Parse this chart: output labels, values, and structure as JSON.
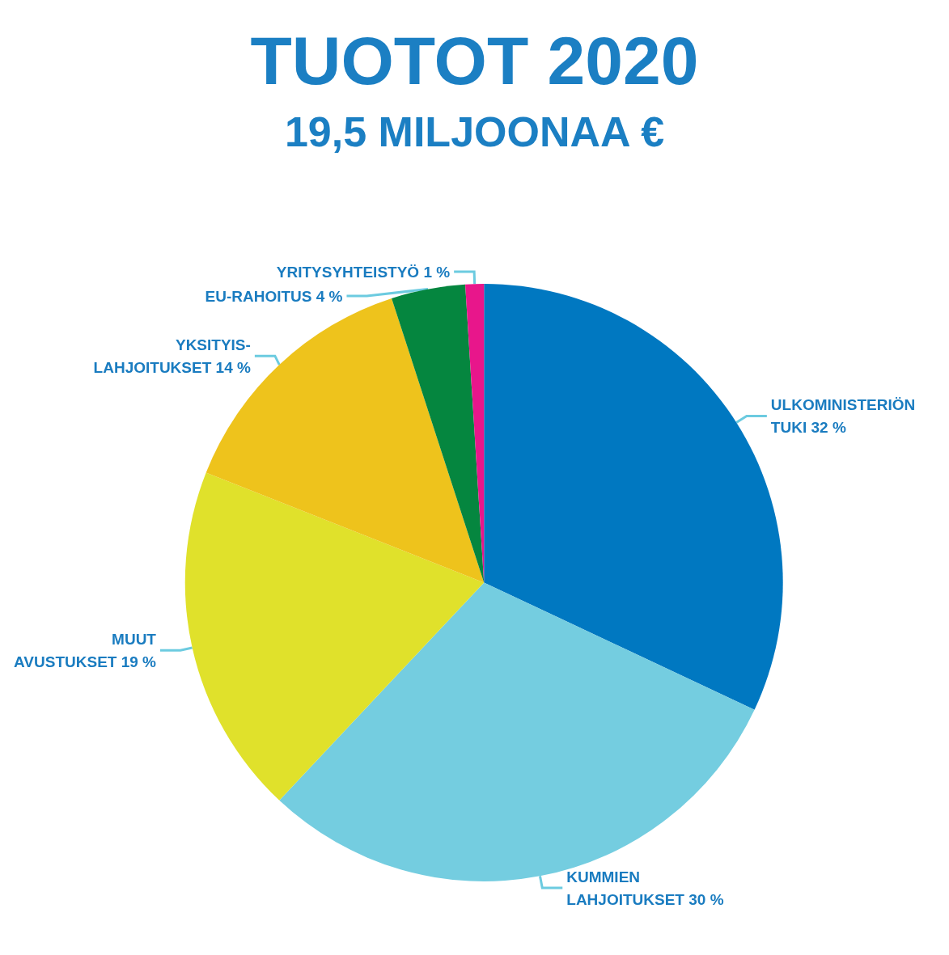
{
  "chart_data": {
    "type": "pie",
    "title": "TUOTOT 2020",
    "subtitle": "19,5 MILJOONAA €",
    "categories": [
      "ULKOMINISTERIÖN TUKI",
      "KUMMIEN LAHJOITUKSET",
      "MUUT AVUSTUKSET",
      "YKSITYIS-LAHJOITUKSET",
      "EU-RAHOITUS",
      "YRITYSYHTEISTYÖ"
    ],
    "values": [
      32,
      30,
      19,
      14,
      4,
      1
    ],
    "colors": [
      "#0078c1",
      "#74cde0",
      "#e0e12b",
      "#eec31c",
      "#05863f",
      "#e8168b"
    ],
    "value_labels": [
      "32 %",
      "30 %",
      "19 %",
      "14 %",
      "4 %",
      "1 %"
    ],
    "legend": false
  }
}
